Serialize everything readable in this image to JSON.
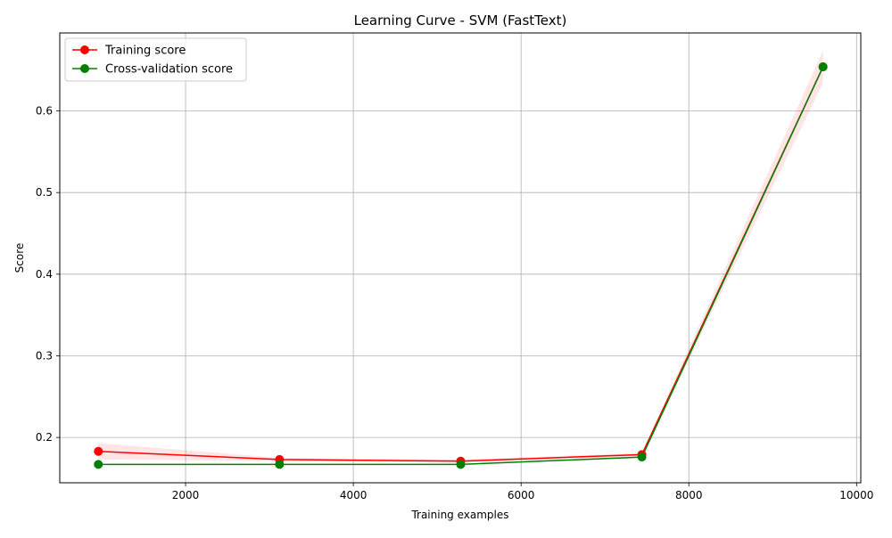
{
  "chart_data": {
    "type": "line",
    "title": "Learning Curve - SVM (FastText)",
    "xlabel": "Training examples",
    "ylabel": "Score",
    "xlim": [
      500,
      10050
    ],
    "ylim": [
      0.1445,
      0.6955
    ],
    "xticks": [
      2000,
      4000,
      6000,
      8000,
      10000
    ],
    "yticks": [
      0.2,
      0.3,
      0.4,
      0.5,
      0.6
    ],
    "xtick_labels": [
      "2000",
      "4000",
      "6000",
      "8000",
      "10000"
    ],
    "ytick_labels": [
      "0.2",
      "0.3",
      "0.4",
      "0.5",
      "0.6"
    ],
    "grid": true,
    "legend_position": "top-left",
    "x": [
      960,
      3120,
      5280,
      7440,
      9600
    ],
    "series": [
      {
        "name": "Training score",
        "color": "#ff0000",
        "marker": "circle",
        "values": [
          0.183,
          0.173,
          0.171,
          0.179,
          0.654
        ],
        "band_lower": [
          0.173,
          0.171,
          0.169,
          0.177,
          0.634
        ],
        "band_upper": [
          0.193,
          0.175,
          0.173,
          0.181,
          0.674
        ]
      },
      {
        "name": "Cross-validation score",
        "color": "#008000",
        "marker": "circle",
        "values": [
          0.167,
          0.167,
          0.167,
          0.176,
          0.654
        ],
        "band_lower": [
          0.167,
          0.167,
          0.167,
          0.175,
          0.653
        ],
        "band_upper": [
          0.167,
          0.167,
          0.167,
          0.177,
          0.655
        ]
      }
    ]
  }
}
